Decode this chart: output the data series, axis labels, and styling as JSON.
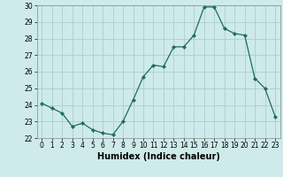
{
  "x": [
    0,
    1,
    2,
    3,
    4,
    5,
    6,
    7,
    8,
    9,
    10,
    11,
    12,
    13,
    14,
    15,
    16,
    17,
    18,
    19,
    20,
    21,
    22,
    23
  ],
  "y": [
    24.1,
    23.8,
    23.5,
    22.7,
    22.9,
    22.5,
    22.3,
    22.2,
    23.0,
    24.3,
    25.7,
    26.4,
    26.3,
    27.5,
    27.5,
    28.2,
    29.9,
    29.9,
    28.6,
    28.3,
    28.2,
    25.6,
    25.0,
    23.3
  ],
  "xlabel": "Humidex (Indice chaleur)",
  "bg_color": "#ceeaea",
  "grid_color": "#aacfcf",
  "line_color": "#1f6b5e",
  "ylim": [
    22,
    30
  ],
  "xlim": [
    -0.5,
    23.5
  ],
  "yticks": [
    22,
    23,
    24,
    25,
    26,
    27,
    28,
    29,
    30
  ],
  "xticks": [
    0,
    1,
    2,
    3,
    4,
    5,
    6,
    7,
    8,
    9,
    10,
    11,
    12,
    13,
    14,
    15,
    16,
    17,
    18,
    19,
    20,
    21,
    22,
    23
  ]
}
